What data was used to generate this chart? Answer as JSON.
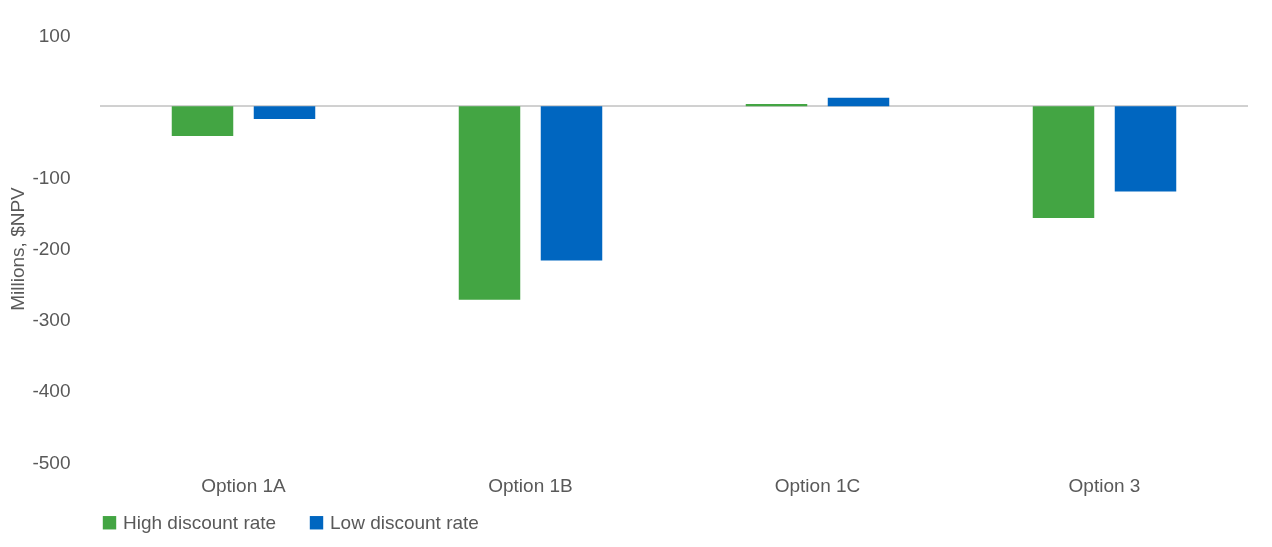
{
  "chart_data": {
    "type": "bar",
    "ylabel": "Millions, $NPV",
    "categories": [
      "Option 1A",
      "Option 1B",
      "Option 1C",
      "Option 3"
    ],
    "series": [
      {
        "name": "High discount rate",
        "color": "#43a543",
        "values": [
          -42,
          -272,
          3,
          -157
        ]
      },
      {
        "name": "Low discount rate",
        "color": "#0066c0",
        "values": [
          -18,
          -217,
          12,
          -120
        ]
      }
    ],
    "ylim": [
      -500,
      100
    ],
    "yticks": [
      100,
      -100,
      -200,
      -300,
      -400,
      -500
    ],
    "grid": false,
    "legend": "bottom"
  }
}
